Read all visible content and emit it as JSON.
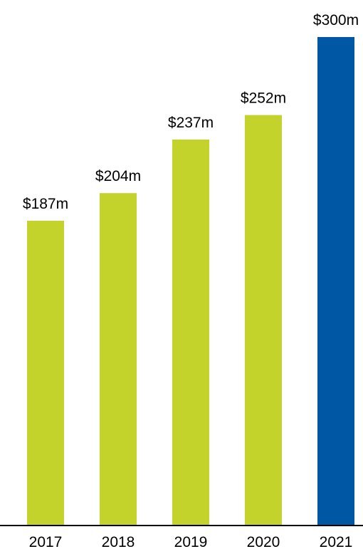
{
  "chart_data": {
    "type": "bar",
    "categories": [
      "2017",
      "2018",
      "2019",
      "2020",
      "2021"
    ],
    "values": [
      187,
      204,
      237,
      252,
      300
    ],
    "data_labels": [
      "$187m",
      "$204m",
      "$237m",
      "$252m",
      "$300m"
    ],
    "title": "",
    "xlabel": "",
    "ylabel": "",
    "ylim": [
      0,
      300
    ],
    "grid": false,
    "legend": "none",
    "colors": {
      "bar": "#c4d22c",
      "highlight_bar": "#0057a4",
      "axis": "#000000",
      "text": "#000000"
    },
    "highlight_index": 4
  }
}
